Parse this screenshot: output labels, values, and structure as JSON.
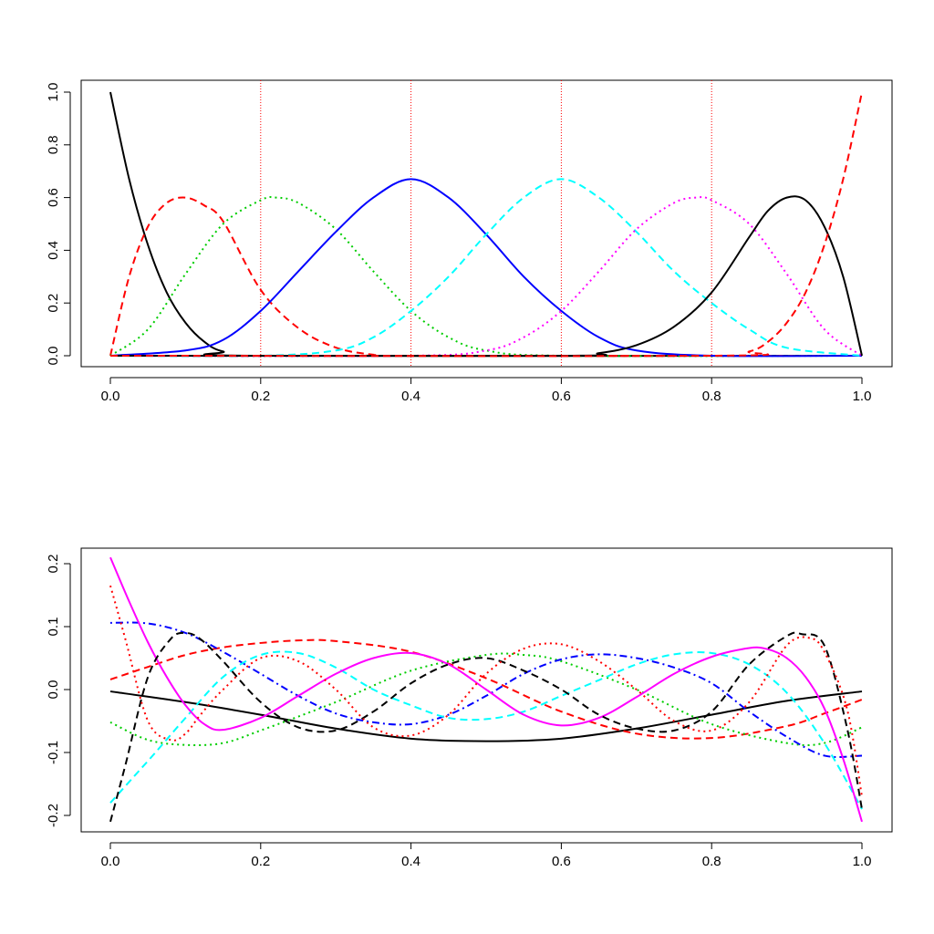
{
  "chart_data": [
    {
      "type": "line",
      "title": "",
      "xlabel": "",
      "ylabel": "",
      "xlim": [
        0,
        1
      ],
      "ylim": [
        0,
        1
      ],
      "x_ticks": [
        "0.0",
        "0.2",
        "0.4",
        "0.6",
        "0.8",
        "1.0"
      ],
      "y_ticks": [
        "0.0",
        "0.2",
        "0.4",
        "0.6",
        "0.8",
        "1.0"
      ],
      "vertical_reference_lines": {
        "x": [
          0.2,
          0.4,
          0.6,
          0.8
        ],
        "color": "#ff0000",
        "style": "dotted"
      },
      "grid": false,
      "legend": "none",
      "series": [
        {
          "color": "#000000",
          "style": "solid",
          "x": [
            0,
            0.025,
            0.05,
            0.075,
            0.1,
            0.125,
            0.15,
            0.2,
            1.0
          ],
          "values": [
            1.0,
            0.67,
            0.42,
            0.24,
            0.125,
            0.053,
            0.016,
            0.0,
            0.0
          ]
        },
        {
          "color": "#ff0000",
          "style": "dashed",
          "x": [
            0,
            0.025,
            0.05,
            0.075,
            0.1,
            0.125,
            0.15,
            0.2,
            0.25,
            0.3,
            0.35,
            0.4,
            1.0
          ],
          "values": [
            0.0,
            0.3,
            0.49,
            0.58,
            0.6,
            0.57,
            0.51,
            0.25,
            0.105,
            0.031,
            0.004,
            0.0,
            0.0
          ]
        },
        {
          "color": "#00cd00",
          "style": "dotted",
          "x": [
            0,
            0.05,
            0.1,
            0.15,
            0.2,
            0.22,
            0.25,
            0.3,
            0.35,
            0.4,
            0.45,
            0.5,
            0.6,
            1.0
          ],
          "values": [
            0.0,
            0.1,
            0.31,
            0.5,
            0.59,
            0.6,
            0.58,
            0.48,
            0.32,
            0.17,
            0.07,
            0.02,
            0.0,
            0.0
          ]
        },
        {
          "color": "#0000ff",
          "style": "solid",
          "x": [
            0,
            0.1,
            0.15,
            0.2,
            0.25,
            0.3,
            0.35,
            0.4,
            0.45,
            0.5,
            0.55,
            0.6,
            0.65,
            0.7,
            0.8,
            1.0
          ],
          "values": [
            0.0,
            0.02,
            0.06,
            0.17,
            0.32,
            0.47,
            0.6,
            0.67,
            0.6,
            0.46,
            0.3,
            0.17,
            0.07,
            0.02,
            0.0,
            0.0
          ]
        },
        {
          "color": "#00ffff",
          "style": "dashed",
          "x": [
            0,
            0.2,
            0.3,
            0.35,
            0.4,
            0.45,
            0.5,
            0.55,
            0.6,
            0.65,
            0.7,
            0.75,
            0.8,
            0.85,
            0.9,
            1.0
          ],
          "values": [
            0.0,
            0.0,
            0.02,
            0.07,
            0.17,
            0.3,
            0.46,
            0.6,
            0.67,
            0.6,
            0.47,
            0.32,
            0.2,
            0.1,
            0.03,
            0.0
          ]
        },
        {
          "color": "#ff00ff",
          "style": "dotted",
          "x": [
            0,
            0.4,
            0.5,
            0.55,
            0.6,
            0.65,
            0.7,
            0.75,
            0.78,
            0.8,
            0.85,
            0.9,
            0.95,
            1.0
          ],
          "values": [
            0.0,
            0.0,
            0.02,
            0.07,
            0.17,
            0.32,
            0.48,
            0.58,
            0.6,
            0.59,
            0.5,
            0.31,
            0.1,
            0.0
          ]
        },
        {
          "color": "#000000",
          "style": "solid",
          "x": [
            0,
            0.6,
            0.65,
            0.7,
            0.75,
            0.8,
            0.85,
            0.875,
            0.9,
            0.925,
            0.95,
            0.975,
            1.0
          ],
          "values": [
            0.0,
            0.0,
            0.01,
            0.04,
            0.11,
            0.24,
            0.45,
            0.55,
            0.6,
            0.59,
            0.49,
            0.3,
            0.0
          ]
        },
        {
          "color": "#ff0000",
          "style": "dashed",
          "x": [
            0,
            0.8,
            0.85,
            0.875,
            0.9,
            0.925,
            0.95,
            0.975,
            1.0
          ],
          "values": [
            0.0,
            0.0,
            0.016,
            0.053,
            0.125,
            0.24,
            0.42,
            0.67,
            1.0
          ]
        }
      ]
    },
    {
      "type": "line",
      "title": "",
      "xlabel": "",
      "ylabel": "",
      "xlim": [
        0,
        1
      ],
      "ylim": [
        -0.2,
        0.2
      ],
      "x_ticks": [
        "0.0",
        "0.2",
        "0.4",
        "0.6",
        "0.8",
        "1.0"
      ],
      "y_ticks": [
        "-0.2",
        "-0.1",
        "0.0",
        "0.1",
        "0.2"
      ],
      "grid": false,
      "legend": "none",
      "series": [
        {
          "color": "#000000",
          "style": "solid",
          "x": [
            0,
            0.1,
            0.2,
            0.3,
            0.4,
            0.5,
            0.6,
            0.7,
            0.8,
            0.9,
            1.0
          ],
          "values": [
            -0.003,
            -0.02,
            -0.04,
            -0.062,
            -0.078,
            -0.082,
            -0.078,
            -0.062,
            -0.04,
            -0.018,
            -0.003
          ]
        },
        {
          "color": "#ff0000",
          "style": "dashed",
          "x": [
            0,
            0.05,
            0.1,
            0.15,
            0.2,
            0.25,
            0.3,
            0.4,
            0.5,
            0.6,
            0.7,
            0.8,
            0.9,
            0.95,
            1.0
          ],
          "values": [
            0.016,
            0.036,
            0.055,
            0.067,
            0.074,
            0.078,
            0.077,
            0.06,
            0.018,
            -0.035,
            -0.07,
            -0.077,
            -0.058,
            -0.038,
            -0.016
          ]
        },
        {
          "color": "#00cd00",
          "style": "dotted",
          "x": [
            0,
            0.05,
            0.1,
            0.15,
            0.2,
            0.3,
            0.4,
            0.5,
            0.55,
            0.6,
            0.7,
            0.8,
            0.9,
            0.95,
            1.0
          ],
          "values": [
            -0.052,
            -0.08,
            -0.088,
            -0.085,
            -0.065,
            -0.02,
            0.03,
            0.055,
            0.055,
            0.045,
            0.0,
            -0.055,
            -0.085,
            -0.085,
            -0.06
          ]
        },
        {
          "color": "#0000ff",
          "style": "dotdash",
          "x": [
            0,
            0.05,
            0.1,
            0.15,
            0.2,
            0.25,
            0.3,
            0.35,
            0.4,
            0.45,
            0.5,
            0.55,
            0.6,
            0.65,
            0.7,
            0.75,
            0.8,
            0.85,
            0.9,
            0.95,
            1.0
          ],
          "values": [
            0.106,
            0.105,
            0.09,
            0.06,
            0.025,
            -0.01,
            -0.038,
            -0.052,
            -0.055,
            -0.04,
            -0.01,
            0.025,
            0.048,
            0.056,
            0.05,
            0.035,
            0.01,
            -0.035,
            -0.075,
            -0.105,
            -0.105
          ]
        },
        {
          "color": "#00ffff",
          "style": "dashed",
          "x": [
            0,
            0.03,
            0.06,
            0.1,
            0.15,
            0.2,
            0.25,
            0.3,
            0.35,
            0.4,
            0.45,
            0.5,
            0.55,
            0.6,
            0.65,
            0.7,
            0.75,
            0.8,
            0.85,
            0.9,
            0.95,
            1.0
          ],
          "values": [
            -0.18,
            -0.14,
            -0.1,
            -0.045,
            0.02,
            0.055,
            0.058,
            0.035,
            0.0,
            -0.025,
            -0.045,
            -0.047,
            -0.035,
            -0.01,
            0.015,
            0.04,
            0.056,
            0.058,
            0.04,
            -0.005,
            -0.085,
            -0.19
          ]
        },
        {
          "color": "#ff00ff",
          "style": "solid",
          "x": [
            0,
            0.025,
            0.05,
            0.075,
            0.1,
            0.125,
            0.15,
            0.2,
            0.25,
            0.3,
            0.35,
            0.4,
            0.45,
            0.5,
            0.55,
            0.6,
            0.65,
            0.7,
            0.75,
            0.8,
            0.85,
            0.875,
            0.9,
            0.925,
            0.95,
            0.975,
            1.0
          ],
          "values": [
            0.21,
            0.14,
            0.075,
            0.02,
            -0.025,
            -0.055,
            -0.064,
            -0.045,
            -0.01,
            0.025,
            0.05,
            0.058,
            0.04,
            0.0,
            -0.04,
            -0.057,
            -0.045,
            -0.012,
            0.025,
            0.052,
            0.066,
            0.064,
            0.05,
            0.02,
            -0.03,
            -0.11,
            -0.21
          ]
        },
        {
          "color": "#000000",
          "style": "dashed",
          "x": [
            0,
            0.02,
            0.05,
            0.08,
            0.1,
            0.12,
            0.15,
            0.2,
            0.25,
            0.3,
            0.35,
            0.4,
            0.45,
            0.5,
            0.55,
            0.6,
            0.65,
            0.7,
            0.75,
            0.8,
            0.85,
            0.9,
            0.92,
            0.95,
            0.98,
            1.0
          ],
          "values": [
            -0.21,
            -0.12,
            0.02,
            0.08,
            0.09,
            0.08,
            0.045,
            -0.02,
            -0.06,
            -0.065,
            -0.035,
            0.01,
            0.04,
            0.05,
            0.03,
            0.0,
            -0.04,
            -0.062,
            -0.065,
            -0.035,
            0.04,
            0.085,
            0.088,
            0.07,
            -0.06,
            -0.19
          ]
        },
        {
          "color": "#ff0000",
          "style": "dotted",
          "x": [
            0,
            0.02,
            0.05,
            0.08,
            0.1,
            0.12,
            0.15,
            0.2,
            0.25,
            0.3,
            0.35,
            0.4,
            0.45,
            0.5,
            0.55,
            0.6,
            0.65,
            0.7,
            0.75,
            0.8,
            0.85,
            0.9,
            0.93,
            0.95,
            0.98,
            1.0
          ],
          "values": [
            0.165,
            0.08,
            -0.05,
            -0.08,
            -0.07,
            -0.04,
            0.0,
            0.05,
            0.045,
            0.0,
            -0.06,
            -0.073,
            -0.04,
            0.025,
            0.065,
            0.072,
            0.045,
            0.0,
            -0.05,
            -0.065,
            -0.02,
            0.07,
            0.082,
            0.06,
            -0.03,
            -0.17
          ]
        }
      ]
    }
  ]
}
